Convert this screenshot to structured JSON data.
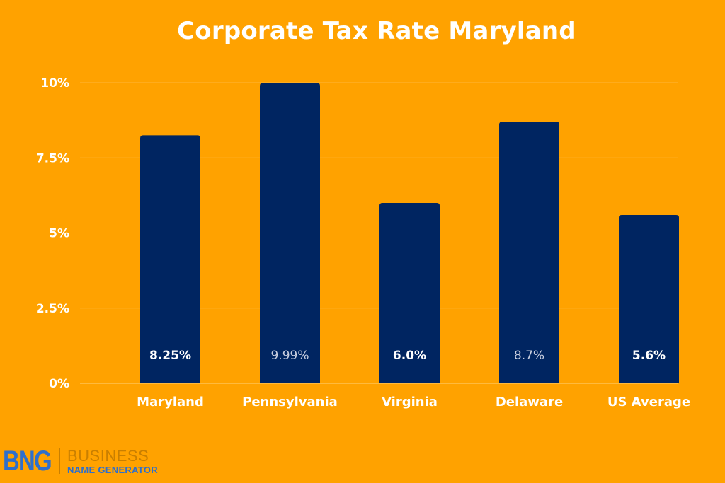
{
  "chart_data": {
    "type": "bar",
    "title": "Corporate Tax Rate Maryland",
    "categories": [
      "Maryland",
      "Pennsylvania",
      "Virginia",
      "Delaware",
      "US Average"
    ],
    "values": [
      8.25,
      9.99,
      6.0,
      8.7,
      5.6
    ],
    "value_labels": [
      "8.25%",
      "9.99%",
      "6.0%",
      "8.7%",
      "5.6%"
    ],
    "value_label_style": [
      "bold",
      "light",
      "bold",
      "light",
      "bold"
    ],
    "y_ticks": [
      0,
      2.5,
      5,
      7.5,
      10
    ],
    "y_tick_labels": [
      "0%",
      "2.5%",
      "5%",
      "7.5%",
      "10%"
    ],
    "ylim": [
      0,
      10
    ],
    "xlabel": "",
    "ylabel": "",
    "grid": true,
    "bar_color": "#002561",
    "background_color": "#FFA200"
  },
  "logo": {
    "mark": "BNG",
    "line1": "BUSINESS",
    "line2": "NAME GENERATOR"
  }
}
